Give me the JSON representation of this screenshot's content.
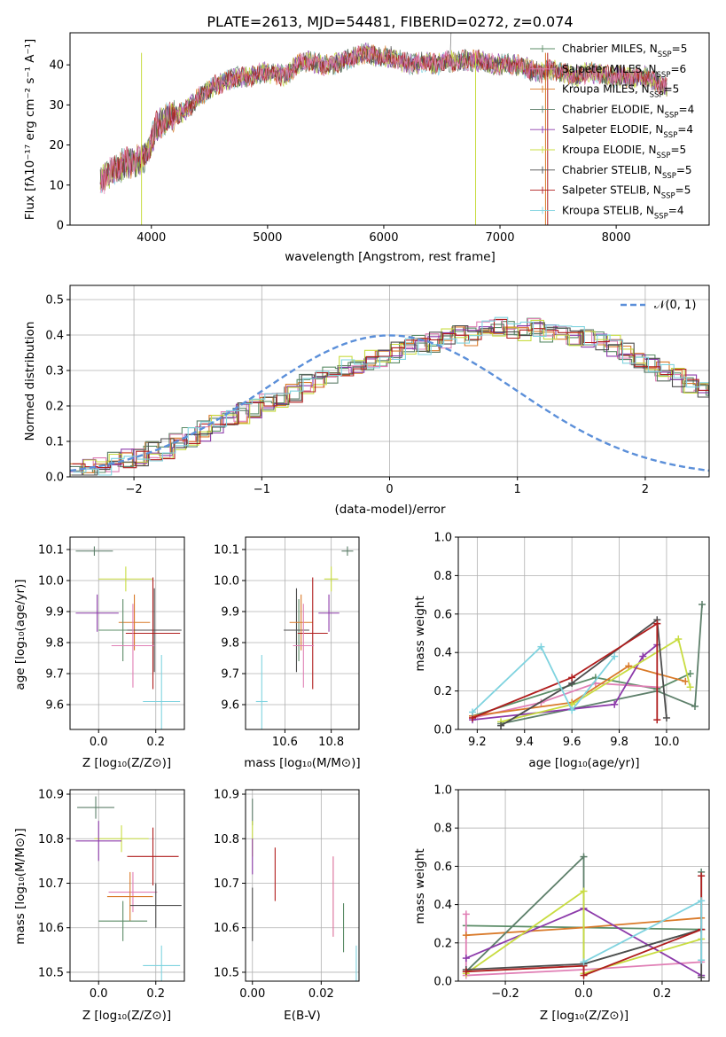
{
  "figure": {
    "title": "PLATE=2613, MJD=54481, FIBERID=0272, z=0.074"
  },
  "colors": [
    "#5b8c67",
    "#e07fb5",
    "#d97a2a",
    "#5d7f6a",
    "#8c3aaa",
    "#c8dc40",
    "#4d4d4d",
    "#b01e1e",
    "#7fd3df"
  ],
  "model_names": [
    "Chabrier MILES",
    "Salpeter MILES",
    "Kroupa MILES",
    "Chabrier ELODIE",
    "Salpeter ELODIE",
    "Kroupa ELODIE",
    "Chabrier STELIB",
    "Salpeter STELIB",
    "Kroupa STELIB"
  ],
  "model_nssp": [
    5,
    6,
    5,
    4,
    4,
    5,
    5,
    5,
    4
  ],
  "panels": {
    "spectrum": {
      "ylabel": "Flux [fλ10⁻¹⁷ erg cm⁻² s⁻¹ A⁻¹]",
      "xlabel": "wavelength [Angstrom, rest frame]",
      "xticks": [
        "4000",
        "5000",
        "6000",
        "7000",
        "8000"
      ],
      "yticks": [
        "0",
        "10",
        "20",
        "30",
        "40"
      ]
    },
    "residuals": {
      "ylabel": "Normed distribution",
      "xlabel": "(data-model)/error",
      "legend": "𝒩(0, 1)",
      "xticks": [
        "−2",
        "−1",
        "0",
        "1",
        "2"
      ],
      "yticks": [
        "0.0",
        "0.1",
        "0.2",
        "0.3",
        "0.4",
        "0.5"
      ]
    },
    "z_age": {
      "ylabel": "age  [log₁₀(age/yr)]",
      "xlabel": "Z [log₁₀(Z/Z⊙)]",
      "xticks": [
        "0.0",
        "0.2"
      ],
      "yticks": [
        "9.6",
        "9.7",
        "9.8",
        "9.9",
        "10.0",
        "10.1"
      ]
    },
    "mass_age": {
      "xlabel": "mass [log₁₀(M/M⊙)]",
      "xticks": [
        "10.6",
        "10.8"
      ],
      "yticks": [
        "9.6",
        "9.7",
        "9.8",
        "9.9",
        "10.0",
        "10.1"
      ]
    },
    "age_weight": {
      "ylabel": "mass weight",
      "xlabel": "age  [log₁₀(age/yr)]",
      "xticks": [
        "9.2",
        "9.4",
        "9.6",
        "9.8",
        "10.0"
      ],
      "yticks": [
        "0.0",
        "0.2",
        "0.4",
        "0.6",
        "0.8",
        "1.0"
      ]
    },
    "z_mass": {
      "ylabel": "mass [log₁₀(M/M⊙)]",
      "xlabel": "Z [log₁₀(Z/Z⊙)]",
      "xticks": [
        "0.0",
        "0.2"
      ],
      "yticks": [
        "10.5",
        "10.6",
        "10.7",
        "10.8",
        "10.9"
      ]
    },
    "ebv_mass": {
      "xlabel": "E(B-V)",
      "xticks": [
        "0.00",
        "0.02"
      ],
      "yticks": [
        "10.5",
        "10.6",
        "10.7",
        "10.8",
        "10.9"
      ]
    },
    "z_weight": {
      "ylabel": "mass weight",
      "xlabel": "Z [log₁₀(Z/Z⊙)]",
      "xticks": [
        "−0.2",
        "0.0",
        "0.2"
      ],
      "yticks": [
        "0.0",
        "0.2",
        "0.4",
        "0.6",
        "0.8",
        "1.0"
      ]
    }
  },
  "chart_data": [
    {
      "type": "line",
      "panel": "spectrum",
      "title": "PLATE=2613, MJD=54481, FIBERID=0272, z=0.074",
      "xlabel": "wavelength [Angstrom, rest frame]",
      "ylabel": "Flux [fλ10⁻¹⁷ erg cm⁻² s⁻¹ A⁻¹]",
      "xlim": [
        3300,
        8800
      ],
      "ylim": [
        0,
        48
      ],
      "grid": false,
      "legend_position": "top-right",
      "x": [
        3550,
        3650,
        3750,
        3850,
        3950,
        4050,
        4150,
        4250,
        4350,
        4450,
        4550,
        4650,
        4750,
        4850,
        4950,
        5050,
        5150,
        5250,
        5350,
        5450,
        5550,
        5650,
        5750,
        5850,
        5950,
        6050,
        6150,
        6250,
        6350,
        6450,
        6550,
        6650,
        6750,
        6850,
        6950,
        7050,
        7150,
        7250,
        7350,
        7450,
        7550,
        7650,
        7750,
        7850,
        7950,
        8050,
        8150,
        8250,
        8350,
        8450
      ],
      "y": [
        11,
        13,
        15,
        16,
        17,
        25,
        27,
        28,
        30,
        33,
        35,
        36,
        37,
        37,
        38,
        38,
        37,
        40,
        41,
        40,
        40,
        41,
        42,
        43,
        42,
        42,
        41,
        40,
        41,
        40,
        41,
        41,
        41,
        41,
        40,
        40,
        40,
        39,
        38,
        39,
        38,
        37,
        38,
        38,
        37,
        37,
        37,
        37,
        36,
        34
      ],
      "series": [
        {
          "name": "Chabrier MILES, N_SSP=5"
        },
        {
          "name": "Salpeter MILES, N_SSP=6"
        },
        {
          "name": "Kroupa MILES, N_SSP=5"
        },
        {
          "name": "Chabrier ELODIE, N_SSP=4"
        },
        {
          "name": "Salpeter ELODIE, N_SSP=4"
        },
        {
          "name": "Kroupa ELODIE, N_SSP=5"
        },
        {
          "name": "Chabrier STELIB, N_SSP=5"
        },
        {
          "name": "Salpeter STELIB, N_SSP=5"
        },
        {
          "name": "Kroupa STELIB, N_SSP=4"
        }
      ]
    },
    {
      "type": "line",
      "panel": "residuals",
      "xlabel": "(data-model)/error",
      "ylabel": "Normed distribution",
      "xlim": [
        -2.5,
        2.5
      ],
      "ylim": [
        0,
        0.54
      ],
      "grid": true,
      "legend_position": "top-right",
      "bin_width": 0.1,
      "bins_from": -2.5,
      "histogram": [
        0.02,
        0.02,
        0.03,
        0.04,
        0.05,
        0.06,
        0.07,
        0.08,
        0.1,
        0.11,
        0.13,
        0.15,
        0.17,
        0.18,
        0.19,
        0.21,
        0.22,
        0.24,
        0.26,
        0.28,
        0.29,
        0.31,
        0.32,
        0.33,
        0.34,
        0.35,
        0.36,
        0.37,
        0.38,
        0.39,
        0.4,
        0.4,
        0.41,
        0.42,
        0.41,
        0.41,
        0.42,
        0.4,
        0.41,
        0.4,
        0.39,
        0.38,
        0.37,
        0.35,
        0.33,
        0.32,
        0.3,
        0.28,
        0.26,
        0.24,
        0.22
      ],
      "series": [
        {
          "name": "𝒩(0, 1)",
          "kind": "gaussian",
          "mean": 0,
          "sigma": 1
        }
      ]
    },
    {
      "type": "scatter",
      "panel": "z_age",
      "xlabel": "Z [log₁₀(Z/Z⊙)]",
      "ylabel": "age  [log₁₀(age/yr)]",
      "xlim": [
        -0.1,
        0.3
      ],
      "ylim": [
        9.52,
        10.14
      ],
      "grid": true,
      "points": [
        {
          "x": -0.015,
          "y": 10.095,
          "xerr": 0.065,
          "yerr": 0.015,
          "color": 3
        },
        {
          "x": 0.095,
          "y": 10.005,
          "xerr": 0.095,
          "yerr": 0.04,
          "color": 5
        },
        {
          "x": -0.005,
          "y": 9.895,
          "xerr": 0.075,
          "yerr": 0.06,
          "color": 4
        },
        {
          "x": 0.125,
          "y": 9.865,
          "xerr": 0.055,
          "yerr": 0.09,
          "color": 2
        },
        {
          "x": 0.085,
          "y": 9.84,
          "xerr": 0.085,
          "yerr": 0.1,
          "color": 0
        },
        {
          "x": 0.195,
          "y": 9.84,
          "xerr": 0.095,
          "yerr": 0.135,
          "color": 6
        },
        {
          "x": 0.19,
          "y": 9.83,
          "xerr": 0.095,
          "yerr": 0.18,
          "color": 7
        },
        {
          "x": 0.12,
          "y": 9.79,
          "xerr": 0.075,
          "yerr": 0.135,
          "color": 1
        },
        {
          "x": 0.22,
          "y": 9.61,
          "xerr": 0.065,
          "yerr": 0.15,
          "color": 8
        }
      ]
    },
    {
      "type": "scatter",
      "panel": "mass_age",
      "xlabel": "mass [log₁₀(M/M⊙)]",
      "xlim": [
        10.43,
        10.92
      ],
      "ylim": [
        9.52,
        10.14
      ],
      "grid": true,
      "points": [
        {
          "x": 10.87,
          "y": 10.095,
          "xerr": 0.025,
          "yerr": 0.015,
          "color": 3
        },
        {
          "x": 10.8,
          "y": 10.005,
          "xerr": 0.03,
          "yerr": 0.04,
          "color": 5
        },
        {
          "x": 10.79,
          "y": 9.895,
          "xerr": 0.045,
          "yerr": 0.06,
          "color": 4
        },
        {
          "x": 10.66,
          "y": 9.84,
          "xerr": 0.045,
          "yerr": 0.1,
          "color": 0
        },
        {
          "x": 10.65,
          "y": 9.84,
          "xerr": 0.055,
          "yerr": 0.135,
          "color": 6
        },
        {
          "x": 10.67,
          "y": 9.865,
          "xerr": 0.05,
          "yerr": 0.09,
          "color": 2
        },
        {
          "x": 10.72,
          "y": 9.83,
          "xerr": 0.065,
          "yerr": 0.18,
          "color": 7
        },
        {
          "x": 10.68,
          "y": 9.79,
          "xerr": 0.045,
          "yerr": 0.135,
          "color": 1
        },
        {
          "x": 10.5,
          "y": 9.61,
          "xerr": 0.025,
          "yerr": 0.15,
          "color": 8
        }
      ]
    },
    {
      "type": "line",
      "panel": "age_weight",
      "xlabel": "age  [log₁₀(age/yr)]",
      "ylabel": "mass weight",
      "xlim": [
        9.12,
        10.18
      ],
      "ylim": [
        0,
        1
      ],
      "grid": true,
      "series": [
        {
          "color": 0,
          "x": [
            9.18,
            9.7,
            9.96,
            10.1
          ],
          "y": [
            0.07,
            0.27,
            0.21,
            0.29
          ]
        },
        {
          "color": 1,
          "x": [
            9.18,
            9.47,
            9.7,
            9.96
          ],
          "y": [
            0.06,
            0.14,
            0.24,
            0.22
          ]
        },
        {
          "color": 2,
          "x": [
            9.18,
            9.6,
            9.84,
            10.08
          ],
          "y": [
            0.07,
            0.14,
            0.33,
            0.25
          ]
        },
        {
          "color": 3,
          "x": [
            9.3,
            9.96,
            10.12,
            10.15
          ],
          "y": [
            0.03,
            0.2,
            0.12,
            0.65
          ]
        },
        {
          "color": 4,
          "x": [
            9.18,
            9.78,
            9.9,
            9.96
          ],
          "y": [
            0.05,
            0.13,
            0.38,
            0.44
          ]
        },
        {
          "color": 5,
          "x": [
            9.3,
            9.6,
            10.05,
            10.1
          ],
          "y": [
            0.04,
            0.13,
            0.47,
            0.22
          ]
        },
        {
          "color": 6,
          "x": [
            9.3,
            9.6,
            9.96,
            10.0
          ],
          "y": [
            0.02,
            0.24,
            0.57,
            0.06
          ]
        },
        {
          "color": 7,
          "x": [
            9.18,
            9.6,
            9.96,
            9.96
          ],
          "y": [
            0.06,
            0.27,
            0.55,
            0.05
          ]
        },
        {
          "color": 8,
          "x": [
            9.18,
            9.47,
            9.6,
            9.78
          ],
          "y": [
            0.09,
            0.43,
            0.1,
            0.38
          ]
        }
      ]
    },
    {
      "type": "scatter",
      "panel": "z_mass",
      "xlabel": "Z [log₁₀(Z/Z⊙)]",
      "ylabel": "mass [log₁₀(M/M⊙)]",
      "xlim": [
        -0.1,
        0.3
      ],
      "ylim": [
        10.48,
        10.91
      ],
      "grid": true,
      "points": [
        {
          "x": -0.01,
          "y": 10.87,
          "xerr": 0.065,
          "yerr": 0.025,
          "color": 3
        },
        {
          "x": 0.08,
          "y": 10.8,
          "xerr": 0.095,
          "yerr": 0.03,
          "color": 5
        },
        {
          "x": 0.0,
          "y": 10.795,
          "xerr": 0.08,
          "yerr": 0.045,
          "color": 4
        },
        {
          "x": 0.19,
          "y": 10.76,
          "xerr": 0.09,
          "yerr": 0.065,
          "color": 7
        },
        {
          "x": 0.12,
          "y": 10.68,
          "xerr": 0.085,
          "yerr": 0.045,
          "color": 1
        },
        {
          "x": 0.11,
          "y": 10.67,
          "xerr": 0.08,
          "yerr": 0.055,
          "color": 2
        },
        {
          "x": 0.2,
          "y": 10.65,
          "xerr": 0.09,
          "yerr": 0.05,
          "color": 6
        },
        {
          "x": 0.085,
          "y": 10.615,
          "xerr": 0.085,
          "yerr": 0.045,
          "color": 0
        },
        {
          "x": 0.22,
          "y": 10.515,
          "xerr": 0.065,
          "yerr": 0.045,
          "color": 8
        }
      ]
    },
    {
      "type": "scatter",
      "panel": "ebv_mass",
      "xlabel": "E(B-V)",
      "xlim": [
        -0.002,
        0.031
      ],
      "ylim": [
        10.48,
        10.91
      ],
      "grid": true,
      "points": [
        {
          "x": 0.0,
          "y": 10.86,
          "yerr": 0.03,
          "color": 3
        },
        {
          "x": 0.0,
          "y": 10.8,
          "yerr": 0.04,
          "color": 5
        },
        {
          "x": 0.0,
          "y": 10.76,
          "yerr": 0.04,
          "color": 4
        },
        {
          "x": 0.0,
          "y": 10.63,
          "yerr": 0.06,
          "color": 6
        },
        {
          "x": 0.0066,
          "y": 10.72,
          "yerr": 0.06,
          "color": 7
        },
        {
          "x": 0.0235,
          "y": 10.67,
          "yerr": 0.09,
          "color": 2
        },
        {
          "x": 0.0235,
          "y": 10.67,
          "yerr": 0.09,
          "color": 1
        },
        {
          "x": 0.0265,
          "y": 10.6,
          "yerr": 0.055,
          "color": 0
        },
        {
          "x": 0.0302,
          "y": 10.52,
          "yerr": 0.04,
          "color": 8
        }
      ]
    },
    {
      "type": "line",
      "panel": "z_weight",
      "xlabel": "Z [log₁₀(Z/Z⊙)]",
      "ylabel": "mass weight",
      "xlim": [
        -0.32,
        0.32
      ],
      "ylim": [
        0,
        1
      ],
      "grid": true,
      "series": [
        {
          "color": 0,
          "x": [
            -0.3,
            0.0,
            0.3
          ],
          "y": [
            0.29,
            0.28,
            0.27
          ]
        },
        {
          "color": 1,
          "x": [
            -0.3,
            -0.3,
            0.0,
            0.3
          ],
          "y": [
            0.35,
            0.03,
            0.06,
            0.1
          ]
        },
        {
          "color": 2,
          "x": [
            -0.3,
            0.0,
            0.3
          ],
          "y": [
            0.24,
            0.28,
            0.33
          ]
        },
        {
          "color": 3,
          "x": [
            -0.3,
            0.0,
            0.0,
            0.3,
            0.3
          ],
          "y": [
            0.05,
            0.65,
            0.09,
            0.27,
            0.57
          ]
        },
        {
          "color": 4,
          "x": [
            -0.3,
            0.0,
            0.3
          ],
          "y": [
            0.12,
            0.38,
            0.03
          ]
        },
        {
          "color": 5,
          "x": [
            -0.3,
            0.0,
            0.0,
            0.3
          ],
          "y": [
            0.04,
            0.47,
            0.04,
            0.22
          ]
        },
        {
          "color": 6,
          "x": [
            -0.3,
            0.0,
            0.3,
            0.3
          ],
          "y": [
            0.06,
            0.09,
            0.27,
            0.02
          ]
        },
        {
          "color": 7,
          "x": [
            -0.3,
            0.0,
            0.0,
            0.3,
            0.3
          ],
          "y": [
            0.05,
            0.08,
            0.03,
            0.27,
            0.55
          ]
        },
        {
          "color": 8,
          "x": [
            0.0,
            0.3,
            0.3
          ],
          "y": [
            0.1,
            0.42,
            0.11
          ]
        }
      ]
    }
  ]
}
